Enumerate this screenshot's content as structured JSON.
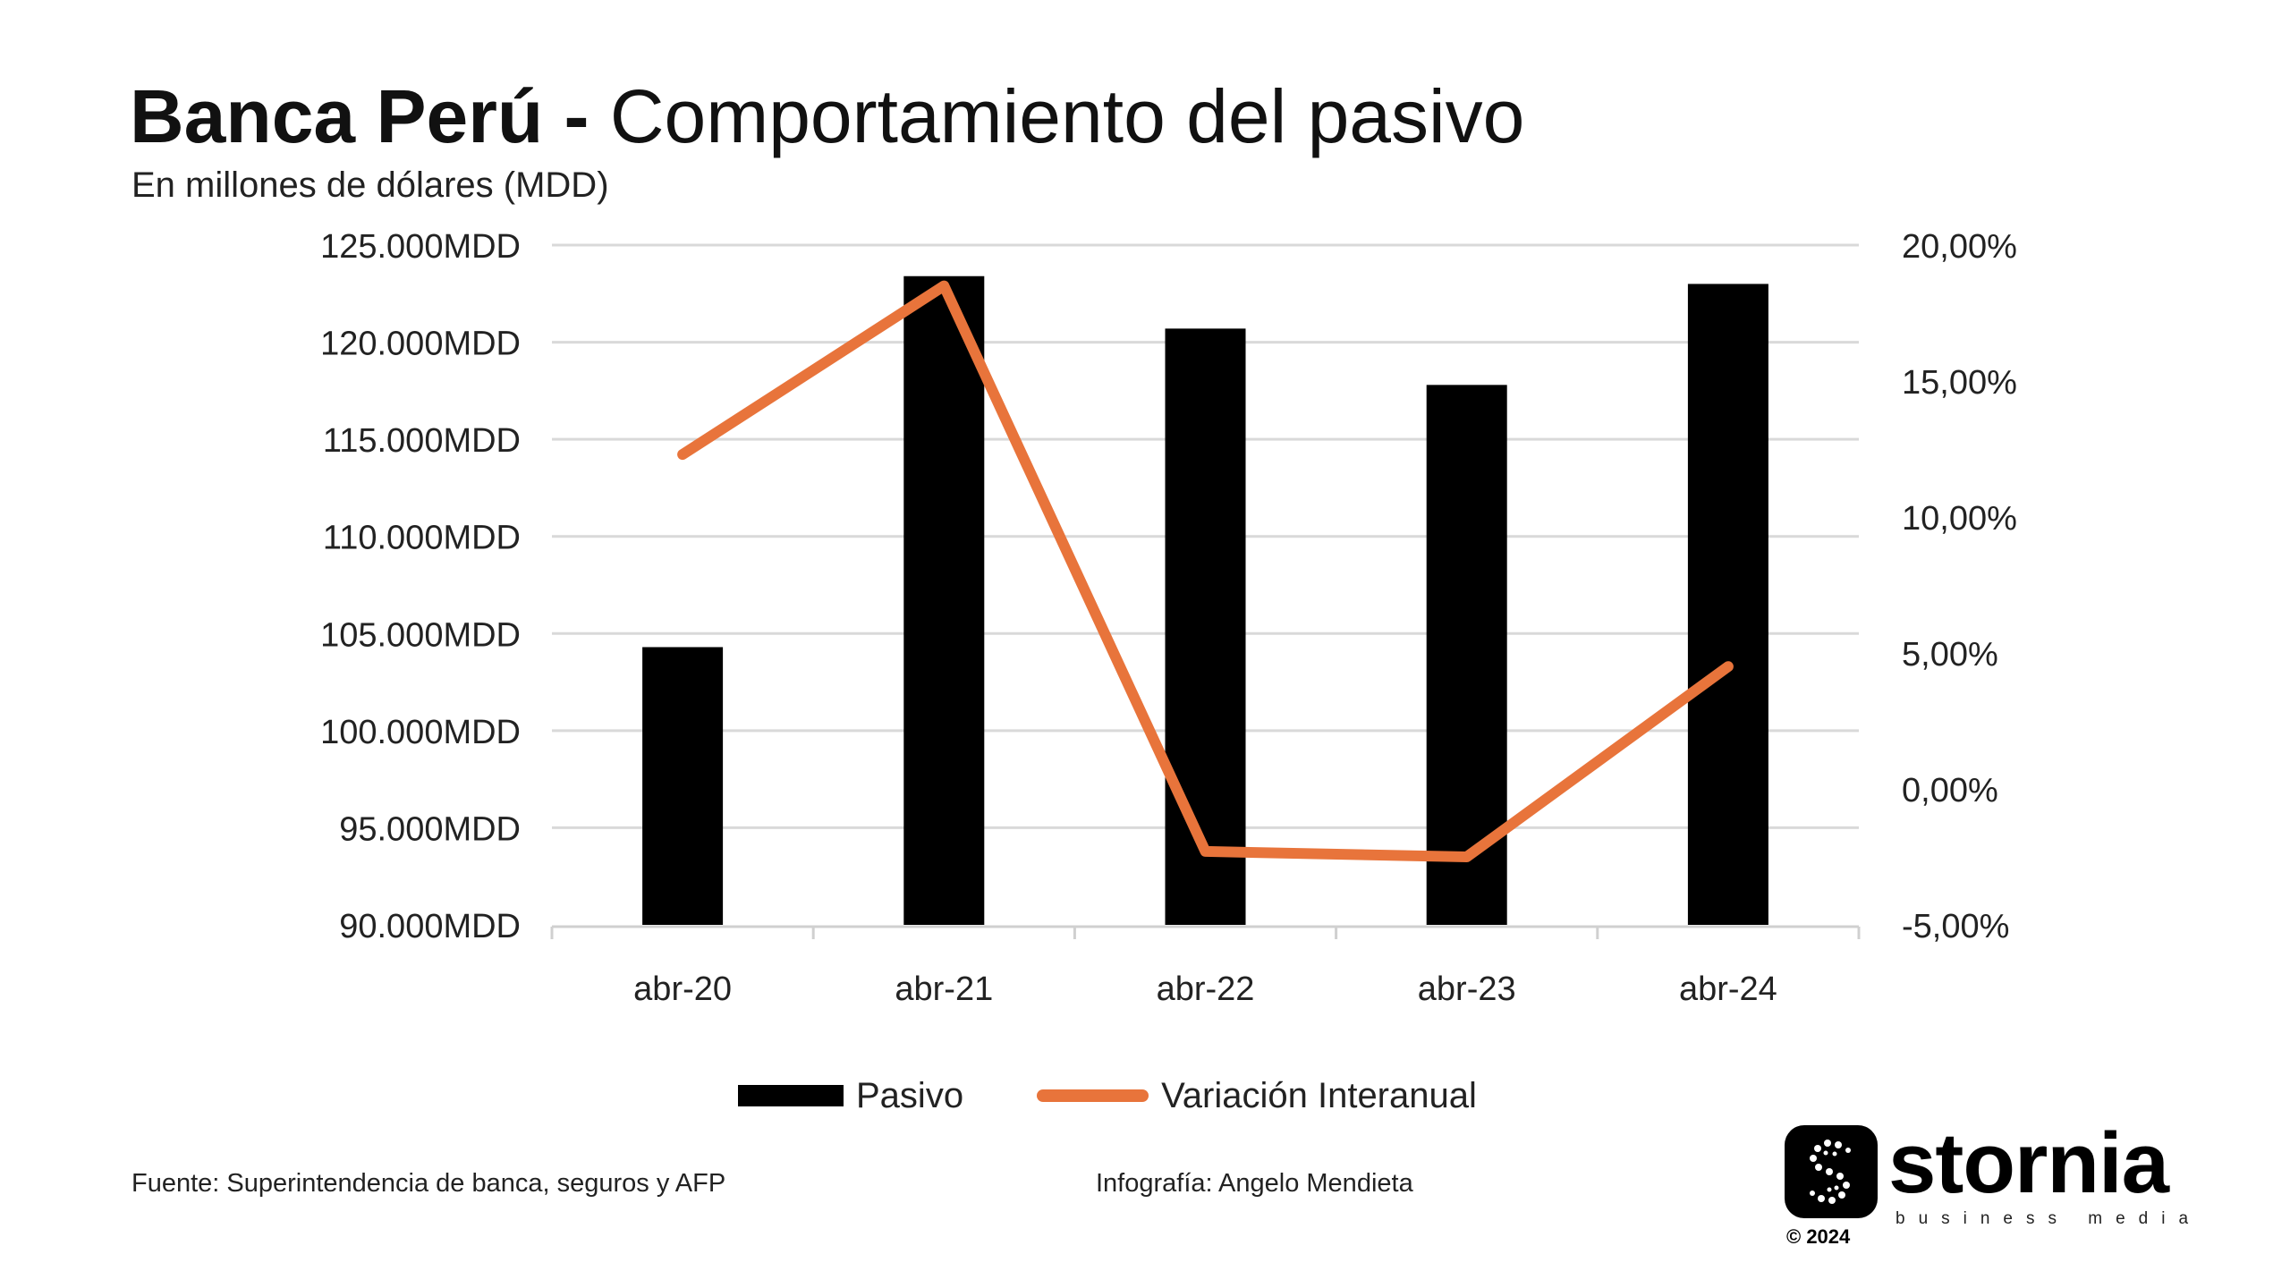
{
  "header": {
    "title_bold": "Banca Perú -",
    "title_light": "Comportamiento del pasivo",
    "subtitle": "En millones de dólares (MDD)"
  },
  "chart_data": {
    "type": "bar+line",
    "categories": [
      "abr-20",
      "abr-21",
      "abr-22",
      "abr-23",
      "abr-24"
    ],
    "series": [
      {
        "name": "Pasivo",
        "type": "bar",
        "axis": "left",
        "color": "#000000",
        "values": [
          104300,
          123400,
          120700,
          117800,
          123000
        ]
      },
      {
        "name": "Variación Interanual",
        "type": "line",
        "axis": "right",
        "color": "#e8743b",
        "values": [
          12.3,
          18.5,
          -2.3,
          -2.5,
          4.5
        ]
      }
    ],
    "y_left": {
      "ylim": [
        90000,
        125000
      ],
      "ticks": [
        90000,
        95000,
        100000,
        105000,
        110000,
        115000,
        120000,
        125000
      ],
      "tick_labels": [
        "90.000MDD",
        "95.000MDD",
        "100.000MDD",
        "105.000MDD",
        "110.000MDD",
        "115.000MDD",
        "120.000MDD",
        "125.000MDD"
      ]
    },
    "y_right": {
      "ylim": [
        -5,
        20
      ],
      "ticks": [
        -5,
        0,
        5,
        10,
        15,
        20
      ],
      "tick_labels": [
        "-5,00%",
        "0,00%",
        "5,00%",
        "10,00%",
        "15,00%",
        "20,00%"
      ]
    },
    "grid": true,
    "legend_position": "bottom"
  },
  "legend": {
    "bar_label": "Pasivo",
    "line_label": "Variación Interanual"
  },
  "footer": {
    "source": "Fuente: Superintendencia de banca, seguros y AFP",
    "credit": "Infografía: Angelo Mendieta"
  },
  "logo": {
    "word": "stornia",
    "tagline": "business media",
    "copyright": "© 2024",
    "icon": "stornia-s-logo-icon"
  }
}
